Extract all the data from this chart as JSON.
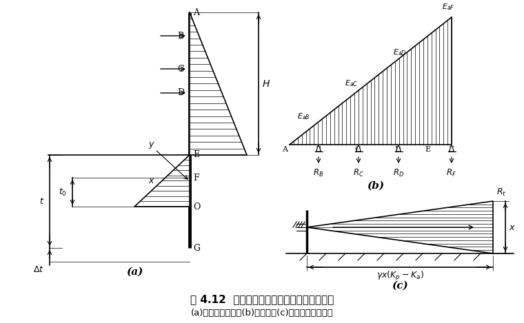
{
  "fig_width": 7.6,
  "fig_height": 4.69,
  "dpi": 100,
  "bg_color": "#ffffff",
  "title_main": "图 4.12  等值梁法计算多层支撑板桩计算简图",
  "title_sub": "(a)土压力分布图；(b)等值梁；(c)人土深度计算简图",
  "caption_a": "(a)",
  "caption_b": "(b)",
  "caption_c": "(c)"
}
